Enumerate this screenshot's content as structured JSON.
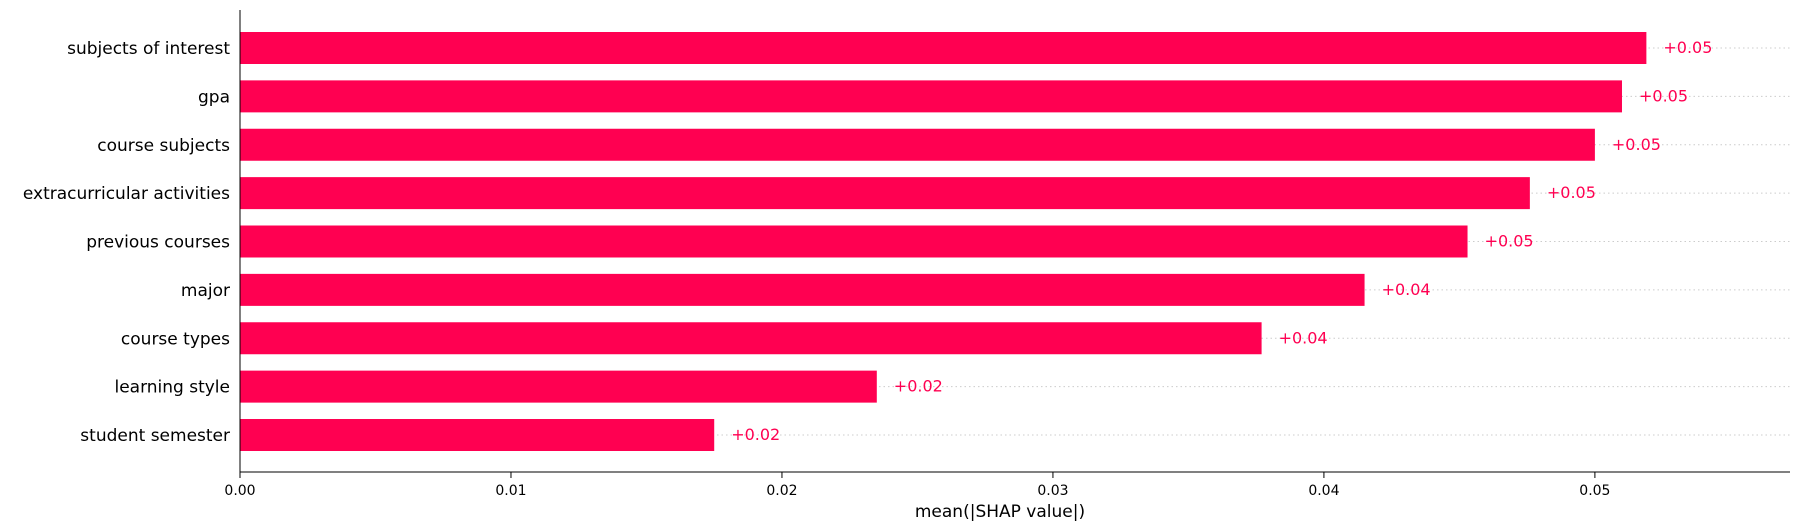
{
  "chart_data": {
    "type": "bar",
    "orientation": "horizontal",
    "title": "",
    "xlabel": "mean(|SHAP value|)",
    "ylabel": "",
    "xlim": [
      0,
      0.0572
    ],
    "xticks": [
      0.0,
      0.01,
      0.02,
      0.03,
      0.04,
      0.05
    ],
    "xtick_labels": [
      "0.00",
      "0.01",
      "0.02",
      "0.03",
      "0.04",
      "0.05"
    ],
    "categories": [
      "subjects of interest",
      "gpa",
      "course subjects",
      "extracurricular activities",
      "previous courses",
      "major",
      "course types",
      "learning style",
      "student semester"
    ],
    "values": [
      0.0519,
      0.051,
      0.05,
      0.0476,
      0.0453,
      0.0415,
      0.0377,
      0.0235,
      0.0175
    ],
    "value_labels": [
      "+0.05",
      "+0.05",
      "+0.05",
      "+0.05",
      "+0.05",
      "+0.04",
      "+0.04",
      "+0.02",
      "+0.02"
    ],
    "bar_color": "#ff0051",
    "grid": "dotted row guides",
    "legend": "none"
  }
}
